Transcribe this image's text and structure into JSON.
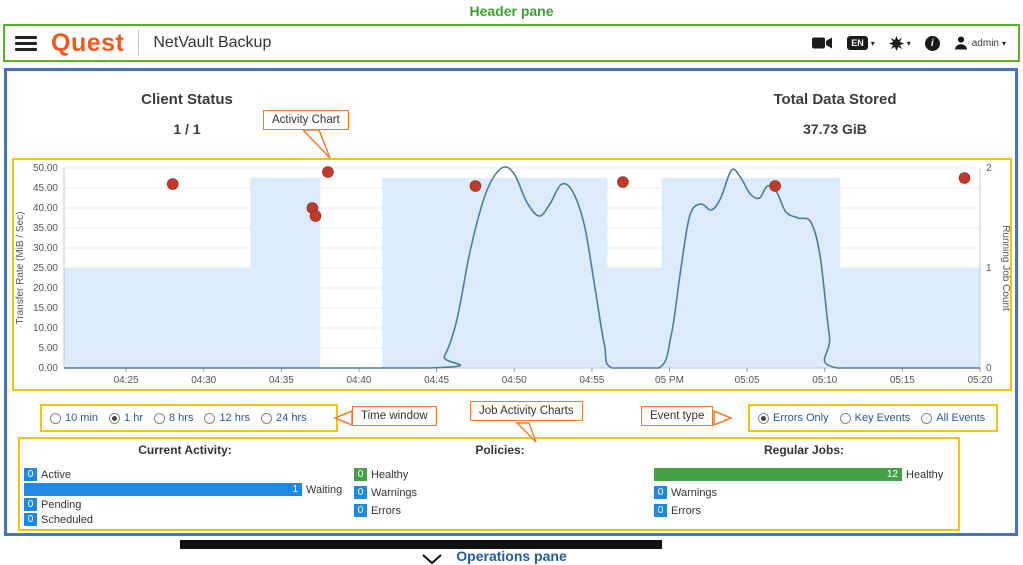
{
  "annotations": {
    "header_pane_label": "Header pane",
    "activity_chart_label": "Activity Chart",
    "time_window_label": "Time window",
    "job_activity_charts_label": "Job Activity Charts",
    "event_type_label": "Event type",
    "operations_pane_label": "Operations pane"
  },
  "header": {
    "brand": "Quest",
    "app_title": "NetVault Backup",
    "language_badge": "EN",
    "user_label": "admin",
    "icons": [
      "menu-icon",
      "video-tutorials-icon",
      "language-selector",
      "whats-new-icon",
      "info-icon",
      "user-icon"
    ]
  },
  "summary": {
    "client_status_label": "Client Status",
    "client_status_value": "1 / 1",
    "total_data_label": "Total Data Stored",
    "total_data_value": "37.73 GiB"
  },
  "time_window": {
    "options": [
      {
        "label": "10 min",
        "selected": false
      },
      {
        "label": "1 hr",
        "selected": true
      },
      {
        "label": "8 hrs",
        "selected": false
      },
      {
        "label": "12 hrs",
        "selected": false
      },
      {
        "label": "24 hrs",
        "selected": false
      }
    ]
  },
  "event_type": {
    "options": [
      {
        "label": "Errors Only",
        "selected": true
      },
      {
        "label": "Key Events",
        "selected": false
      },
      {
        "label": "All Events",
        "selected": false
      }
    ]
  },
  "operations": {
    "columns": [
      {
        "title": "Current Activity:",
        "rows": [
          {
            "value": "0",
            "label": "Active",
            "color": "blue",
            "size": "small"
          },
          {
            "value": "1",
            "label": "Waiting",
            "color": "blue",
            "size": "large"
          },
          {
            "value": "0",
            "label": "Pending",
            "color": "blue",
            "size": "small"
          },
          {
            "value": "0",
            "label": "Scheduled",
            "color": "blue",
            "size": "small"
          }
        ]
      },
      {
        "title": "Policies:",
        "rows": [
          {
            "value": "0",
            "label": "Healthy",
            "color": "green",
            "size": "small"
          },
          {
            "value": "0",
            "label": "Warnings",
            "color": "blue",
            "size": "small"
          },
          {
            "value": "0",
            "label": "Errors",
            "color": "blue",
            "size": "small"
          }
        ]
      },
      {
        "title": "Regular Jobs:",
        "rows": [
          {
            "value": "12",
            "label": "Healthy",
            "color": "green",
            "size": "large"
          },
          {
            "value": "0",
            "label": "Warnings",
            "color": "blue",
            "size": "small"
          },
          {
            "value": "0",
            "label": "Errors",
            "color": "blue",
            "size": "small"
          }
        ]
      }
    ]
  },
  "chart_data": {
    "type": "line",
    "title": "Activity Chart",
    "x_axis": {
      "range_minutes": [
        261,
        320
      ],
      "tick_minutes": [
        265,
        270,
        275,
        280,
        285,
        290,
        295,
        300,
        305,
        310,
        315,
        320
      ],
      "tick_labels": [
        "04:25",
        "04:30",
        "04:35",
        "04:40",
        "04:45",
        "04:50",
        "04:55",
        "05 PM",
        "05:05",
        "05:10",
        "05:15",
        "05:20"
      ]
    },
    "y_left": {
      "label": "Transfer Rate (MiB / Sec)",
      "min": 0,
      "max": 50,
      "tick_step": 5
    },
    "y_right": {
      "label": "Running Job Count",
      "min": 0,
      "max": 2,
      "ticks": [
        0,
        1,
        2
      ]
    },
    "running_job_segments": [
      {
        "start": 261,
        "end": 273,
        "count": 1
      },
      {
        "start": 273,
        "end": 277.5,
        "count": 2
      },
      {
        "start": 277.5,
        "end": 281.5,
        "count": 0
      },
      {
        "start": 281.5,
        "end": 296,
        "count": 2
      },
      {
        "start": 296,
        "end": 299.5,
        "count": 1
      },
      {
        "start": 299.5,
        "end": 311,
        "count": 2
      },
      {
        "start": 311,
        "end": 320,
        "count": 1
      }
    ],
    "transfer_rate_line": [
      [
        261,
        0
      ],
      [
        284.5,
        0
      ],
      [
        285.5,
        3
      ],
      [
        286.3,
        12
      ],
      [
        287.2,
        30
      ],
      [
        288.2,
        44
      ],
      [
        289.2,
        50
      ],
      [
        290,
        48.5
      ],
      [
        290.8,
        41.5
      ],
      [
        291.6,
        38
      ],
      [
        292.3,
        41
      ],
      [
        293,
        45.8
      ],
      [
        293.7,
        44.5
      ],
      [
        294.5,
        36
      ],
      [
        295.2,
        20
      ],
      [
        295.8,
        6
      ],
      [
        296.3,
        0
      ],
      [
        299.3,
        0
      ],
      [
        300.1,
        8
      ],
      [
        300.7,
        24
      ],
      [
        301.3,
        38
      ],
      [
        302,
        41
      ],
      [
        302.7,
        39.5
      ],
      [
        303.3,
        42.5
      ],
      [
        304,
        49.5
      ],
      [
        304.6,
        47.5
      ],
      [
        305.2,
        43.5
      ],
      [
        305.8,
        42.5
      ],
      [
        306.3,
        45.5
      ],
      [
        306.9,
        44
      ],
      [
        307.5,
        39
      ],
      [
        308.3,
        37.5
      ],
      [
        309.1,
        36.5
      ],
      [
        309.7,
        28
      ],
      [
        310.3,
        8
      ],
      [
        310.8,
        0
      ],
      [
        320,
        0
      ]
    ],
    "error_events": [
      {
        "minute": 268,
        "rate": 46
      },
      {
        "minute": 277,
        "rate": 40
      },
      {
        "minute": 277.2,
        "rate": 38
      },
      {
        "minute": 278,
        "rate": 49
      },
      {
        "minute": 287.5,
        "rate": 45.5
      },
      {
        "minute": 297,
        "rate": 46.5
      },
      {
        "minute": 306.8,
        "rate": 45.5
      },
      {
        "minute": 319,
        "rate": 47.5
      }
    ]
  },
  "colors": {
    "header_border_green": "#56b22c",
    "main_border_blue": "#4472c4",
    "highlight_yellow": "#ffc000",
    "callout_orange": "#ed7d31",
    "quest_orange": "#f4581c",
    "bar_blue": "#1e88e5",
    "bar_green": "#43a047",
    "chart_area_fill": "#dcebfb",
    "chart_line_blue": "#4e7ca1",
    "event_dot_red": "#c0392b"
  }
}
